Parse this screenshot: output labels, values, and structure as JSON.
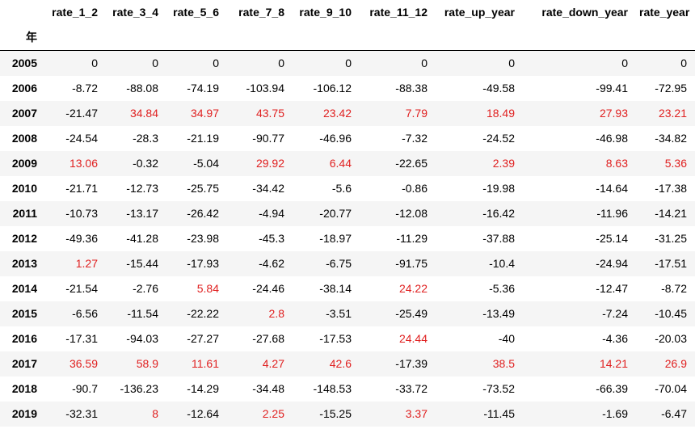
{
  "table": {
    "index_name": "年",
    "columns": [
      "rate_1_2",
      "rate_3_4",
      "rate_5_6",
      "rate_7_8",
      "rate_9_10",
      "rate_11_12",
      "rate_up_year",
      "rate_down_year",
      "rate_year"
    ],
    "positive_color": "#e02020",
    "rows": [
      {
        "year": "2005",
        "values": [
          "0",
          "0",
          "0",
          "0",
          "0",
          "0",
          "0",
          "0",
          "0"
        ]
      },
      {
        "year": "2006",
        "values": [
          "-8.72",
          "-88.08",
          "-74.19",
          "-103.94",
          "-106.12",
          "-88.38",
          "-49.58",
          "-99.41",
          "-72.95"
        ]
      },
      {
        "year": "2007",
        "values": [
          "-21.47",
          "34.84",
          "34.97",
          "43.75",
          "23.42",
          "7.79",
          "18.49",
          "27.93",
          "23.21"
        ]
      },
      {
        "year": "2008",
        "values": [
          "-24.54",
          "-28.3",
          "-21.19",
          "-90.77",
          "-46.96",
          "-7.32",
          "-24.52",
          "-46.98",
          "-34.82"
        ]
      },
      {
        "year": "2009",
        "values": [
          "13.06",
          "-0.32",
          "-5.04",
          "29.92",
          "6.44",
          "-22.65",
          "2.39",
          "8.63",
          "5.36"
        ]
      },
      {
        "year": "2010",
        "values": [
          "-21.71",
          "-12.73",
          "-25.75",
          "-34.42",
          "-5.6",
          "-0.86",
          "-19.98",
          "-14.64",
          "-17.38"
        ]
      },
      {
        "year": "2011",
        "values": [
          "-10.73",
          "-13.17",
          "-26.42",
          "-4.94",
          "-20.77",
          "-12.08",
          "-16.42",
          "-11.96",
          "-14.21"
        ]
      },
      {
        "year": "2012",
        "values": [
          "-49.36",
          "-41.28",
          "-23.98",
          "-45.3",
          "-18.97",
          "-11.29",
          "-37.88",
          "-25.14",
          "-31.25"
        ]
      },
      {
        "year": "2013",
        "values": [
          "1.27",
          "-15.44",
          "-17.93",
          "-4.62",
          "-6.75",
          "-91.75",
          "-10.4",
          "-24.94",
          "-17.51"
        ]
      },
      {
        "year": "2014",
        "values": [
          "-21.54",
          "-2.76",
          "5.84",
          "-24.46",
          "-38.14",
          "24.22",
          "-5.36",
          "-12.47",
          "-8.72"
        ]
      },
      {
        "year": "2015",
        "values": [
          "-6.56",
          "-11.54",
          "-22.22",
          "2.8",
          "-3.51",
          "-25.49",
          "-13.49",
          "-7.24",
          "-10.45"
        ]
      },
      {
        "year": "2016",
        "values": [
          "-17.31",
          "-94.03",
          "-27.27",
          "-27.68",
          "-17.53",
          "24.44",
          "-40",
          "-4.36",
          "-20.03"
        ]
      },
      {
        "year": "2017",
        "values": [
          "36.59",
          "58.9",
          "11.61",
          "4.27",
          "42.6",
          "-17.39",
          "38.5",
          "14.21",
          "26.9"
        ]
      },
      {
        "year": "2018",
        "values": [
          "-90.7",
          "-136.23",
          "-14.29",
          "-34.48",
          "-148.53",
          "-33.72",
          "-73.52",
          "-66.39",
          "-70.04"
        ]
      },
      {
        "year": "2019",
        "values": [
          "-32.31",
          "8",
          "-12.64",
          "2.25",
          "-15.25",
          "3.37",
          "-11.45",
          "-1.69",
          "-6.47"
        ]
      }
    ]
  }
}
